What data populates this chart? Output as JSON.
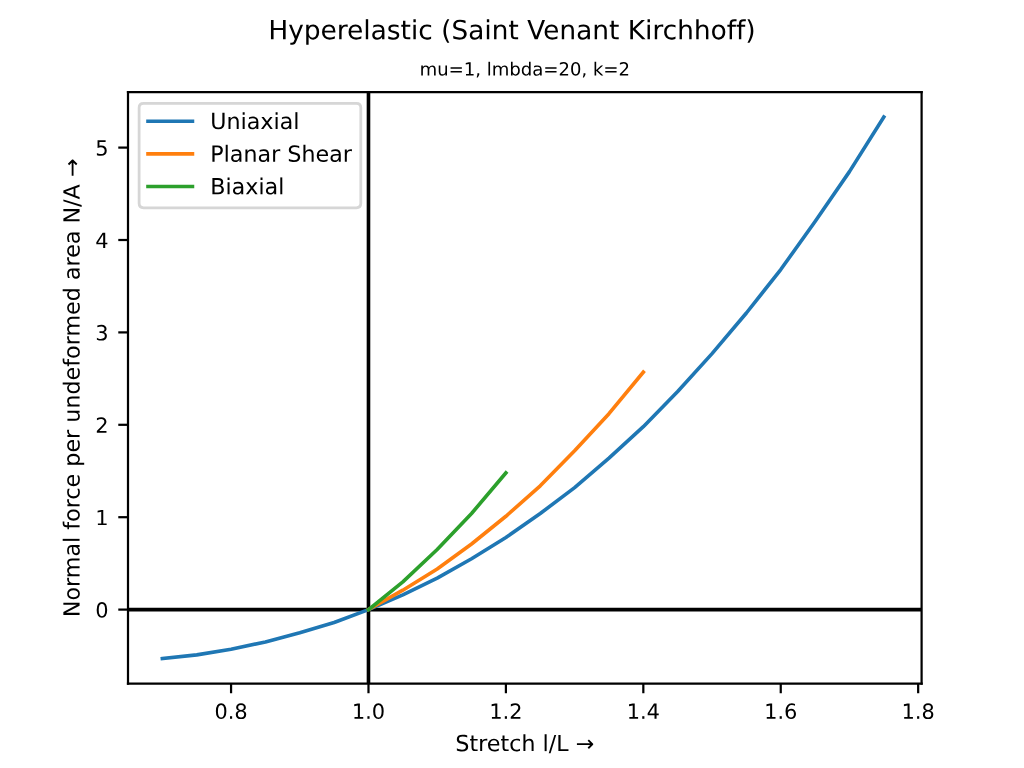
{
  "chart_data": {
    "type": "line",
    "title": "Hyperelastic (Saint Venant Kirchhoff)",
    "subtitle": "mu=1, lmbda=20, k=2",
    "xlabel": "Stretch l/L →",
    "ylabel": "Normal force per undeformed area N/A →",
    "series": [
      {
        "name": "Uniaxial",
        "color": "#1f77b4",
        "x": [
          0.7,
          0.75,
          0.8,
          0.85,
          0.9,
          0.95,
          1.0,
          1.05,
          1.1,
          1.15,
          1.2,
          1.25,
          1.3,
          1.35,
          1.4,
          1.45,
          1.5,
          1.55,
          1.6,
          1.65,
          1.7,
          1.75
        ],
        "values": [
          -0.53,
          -0.49,
          -0.43,
          -0.35,
          -0.25,
          -0.14,
          0,
          0.16,
          0.34,
          0.55,
          0.78,
          1.04,
          1.32,
          1.64,
          1.98,
          2.36,
          2.77,
          3.21,
          3.68,
          4.2,
          4.74,
          5.33
        ]
      },
      {
        "name": "Planar Shear",
        "color": "#ff7f0e",
        "x": [
          1.0,
          1.05,
          1.1,
          1.15,
          1.2,
          1.25,
          1.3,
          1.35,
          1.4
        ],
        "values": [
          0,
          0.21,
          0.44,
          0.71,
          1.01,
          1.34,
          1.72,
          2.12,
          2.57
        ]
      },
      {
        "name": "Biaxial",
        "color": "#2ca02c",
        "x": [
          1.0,
          1.05,
          1.1,
          1.15,
          1.2
        ],
        "values": [
          0,
          0.3,
          0.65,
          1.04,
          1.48
        ]
      }
    ],
    "xlim": [
      0.65,
      1.805
    ],
    "xticks": [
      0.8,
      {
        "value": 1.0,
        "label": "1.0"
      },
      1.2,
      1.4,
      1.6,
      1.8
    ],
    "ylim": [
      -0.8,
      5.6
    ],
    "yticks": [
      0,
      1,
      2,
      3,
      4,
      5
    ],
    "ref_lines": [
      {
        "axis": "x",
        "value": 1.0,
        "color": "#000000"
      },
      {
        "axis": "y",
        "value": 0,
        "color": "#000000"
      }
    ],
    "legend": "top left",
    "grid": false,
    "marker": "none",
    "line_style": "solid"
  }
}
